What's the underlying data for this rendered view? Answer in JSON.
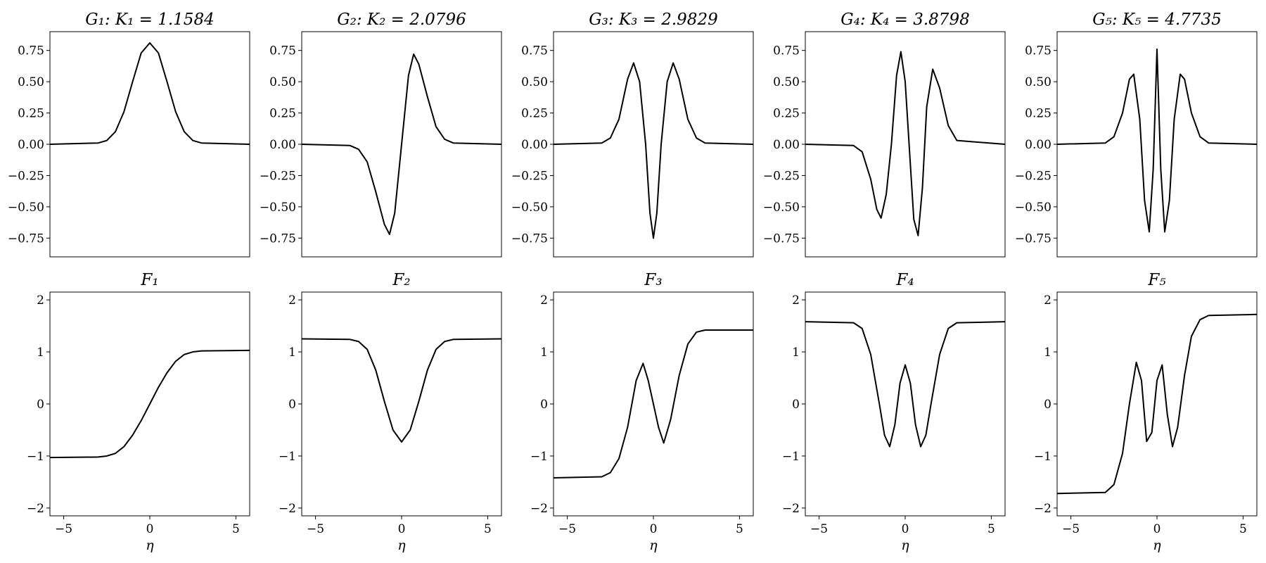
{
  "chart_data": [
    {
      "id": "G1",
      "type": "line",
      "title": "G₁: K₁ = 1.1584",
      "xlabel": "",
      "ylabel": "",
      "xlim": [
        -5.8,
        5.8
      ],
      "ylim": [
        -0.9,
        0.9
      ],
      "yticks": [
        "0.75",
        "0.50",
        "0.25",
        "0.00",
        "−0.25",
        "−0.50",
        "−0.75"
      ],
      "xticks": [],
      "x": [
        -5.8,
        -3.0,
        -2.5,
        -2.0,
        -1.5,
        -1.0,
        -0.5,
        0.0,
        0.5,
        1.0,
        1.5,
        2.0,
        2.5,
        3.0,
        5.8
      ],
      "values": [
        0.0,
        0.01,
        0.03,
        0.1,
        0.26,
        0.5,
        0.73,
        0.81,
        0.73,
        0.5,
        0.26,
        0.1,
        0.03,
        0.01,
        0.0
      ]
    },
    {
      "id": "G2",
      "type": "line",
      "title": "G₂: K₂ = 2.0796",
      "xlabel": "",
      "ylabel": "",
      "xlim": [
        -5.8,
        5.8
      ],
      "ylim": [
        -0.9,
        0.9
      ],
      "yticks": [
        "0.75",
        "0.50",
        "0.25",
        "0.00",
        "−0.25",
        "−0.50",
        "−0.75"
      ],
      "xticks": [],
      "x": [
        -5.8,
        -3.0,
        -2.5,
        -2.0,
        -1.5,
        -1.0,
        -0.7,
        -0.4,
        0.0,
        0.4,
        0.7,
        1.0,
        1.5,
        2.0,
        2.5,
        3.0,
        5.8
      ],
      "values": [
        0.0,
        -0.01,
        -0.04,
        -0.14,
        -0.38,
        -0.64,
        -0.72,
        -0.55,
        0.0,
        0.55,
        0.72,
        0.64,
        0.38,
        0.14,
        0.04,
        0.01,
        0.0
      ]
    },
    {
      "id": "G3",
      "type": "line",
      "title": "G₃: K₃ = 2.9829",
      "xlabel": "",
      "ylabel": "",
      "xlim": [
        -5.8,
        5.8
      ],
      "ylim": [
        -0.9,
        0.9
      ],
      "yticks": [
        "0.75",
        "0.50",
        "0.25",
        "0.00",
        "−0.25",
        "−0.50",
        "−0.75"
      ],
      "xticks": [],
      "x": [
        -5.8,
        -3.0,
        -2.5,
        -2.0,
        -1.5,
        -1.15,
        -0.8,
        -0.45,
        -0.2,
        0.0,
        0.2,
        0.45,
        0.8,
        1.15,
        1.5,
        2.0,
        2.5,
        3.0,
        5.8
      ],
      "values": [
        0.0,
        0.01,
        0.05,
        0.2,
        0.52,
        0.65,
        0.5,
        0.0,
        -0.55,
        -0.75,
        -0.55,
        0.0,
        0.5,
        0.65,
        0.52,
        0.2,
        0.05,
        0.01,
        0.0
      ]
    },
    {
      "id": "G4",
      "type": "line",
      "title": "G₄: K₄ = 3.8798",
      "xlabel": "",
      "ylabel": "",
      "xlim": [
        -5.8,
        5.8
      ],
      "ylim": [
        -0.9,
        0.9
      ],
      "yticks": [
        "0.75",
        "0.50",
        "0.25",
        "0.00",
        "−0.25",
        "−0.50",
        "−0.75"
      ],
      "xticks": [],
      "x": [
        -5.8,
        -3.0,
        -2.5,
        -2.0,
        -1.65,
        -1.4,
        -1.1,
        -0.8,
        -0.5,
        -0.25,
        0.0,
        0.25,
        0.5,
        0.75,
        1.0,
        1.25,
        1.6,
        2.0,
        2.5,
        3.0,
        5.8
      ],
      "values": [
        0.0,
        -0.01,
        -0.06,
        -0.28,
        -0.52,
        -0.59,
        -0.4,
        0.0,
        0.55,
        0.74,
        0.5,
        -0.05,
        -0.6,
        -0.73,
        -0.35,
        0.3,
        0.6,
        0.45,
        0.15,
        0.03,
        0.0
      ]
    },
    {
      "id": "G5",
      "type": "line",
      "title": "G₅: K₅ = 4.7735",
      "xlabel": "",
      "ylabel": "",
      "xlim": [
        -5.8,
        5.8
      ],
      "ylim": [
        -0.9,
        0.9
      ],
      "yticks": [
        "0.75",
        "0.50",
        "0.25",
        "0.00",
        "−0.25",
        "−0.50",
        "−0.75"
      ],
      "xticks": [],
      "x": [
        -5.8,
        -3.0,
        -2.5,
        -2.0,
        -1.6,
        -1.35,
        -1.0,
        -0.72,
        -0.45,
        -0.22,
        0.0,
        0.22,
        0.45,
        0.72,
        1.0,
        1.35,
        1.6,
        2.0,
        2.5,
        3.0,
        5.8
      ],
      "values": [
        0.0,
        0.01,
        0.06,
        0.25,
        0.52,
        0.56,
        0.2,
        -0.45,
        -0.7,
        -0.2,
        0.76,
        -0.2,
        -0.7,
        -0.45,
        0.2,
        0.56,
        0.52,
        0.25,
        0.06,
        0.01,
        0.0
      ]
    },
    {
      "id": "F1",
      "type": "line",
      "title": "F₁",
      "xlabel": "η",
      "ylabel": "",
      "xlim": [
        -5.8,
        5.8
      ],
      "ylim": [
        -2.15,
        2.15
      ],
      "yticks": [
        "2",
        "1",
        "0",
        "−1",
        "−2"
      ],
      "xticks": [
        "−5",
        "0",
        "5"
      ],
      "x": [
        -5.8,
        -3.0,
        -2.5,
        -2.0,
        -1.5,
        -1.0,
        -0.5,
        0.0,
        0.5,
        1.0,
        1.5,
        2.0,
        2.5,
        3.0,
        5.8
      ],
      "values": [
        -1.03,
        -1.02,
        -1.0,
        -0.95,
        -0.82,
        -0.6,
        -0.32,
        0.0,
        0.32,
        0.6,
        0.82,
        0.95,
        1.0,
        1.02,
        1.03
      ]
    },
    {
      "id": "F2",
      "type": "line",
      "title": "F₂",
      "xlabel": "η",
      "ylabel": "",
      "xlim": [
        -5.8,
        5.8
      ],
      "ylim": [
        -2.15,
        2.15
      ],
      "yticks": [
        "2",
        "1",
        "0",
        "−1",
        "−2"
      ],
      "xticks": [
        "−5",
        "0",
        "5"
      ],
      "x": [
        -5.8,
        -3.0,
        -2.5,
        -2.0,
        -1.5,
        -1.0,
        -0.5,
        0.0,
        0.5,
        1.0,
        1.5,
        2.0,
        2.5,
        3.0,
        5.8
      ],
      "values": [
        1.25,
        1.24,
        1.2,
        1.05,
        0.65,
        0.05,
        -0.5,
        -0.73,
        -0.5,
        0.05,
        0.65,
        1.05,
        1.2,
        1.24,
        1.25
      ]
    },
    {
      "id": "F3",
      "type": "line",
      "title": "F₃",
      "xlabel": "η",
      "ylabel": "",
      "xlim": [
        -5.8,
        5.8
      ],
      "ylim": [
        -2.15,
        2.15
      ],
      "yticks": [
        "2",
        "1",
        "0",
        "−1",
        "−2"
      ],
      "xticks": [
        "−5",
        "0",
        "5"
      ],
      "x": [
        -5.8,
        -3.0,
        -2.5,
        -2.0,
        -1.5,
        -1.0,
        -0.6,
        -0.3,
        0.0,
        0.3,
        0.6,
        1.0,
        1.5,
        2.0,
        2.5,
        3.0,
        5.8
      ],
      "values": [
        -1.42,
        -1.4,
        -1.32,
        -1.05,
        -0.45,
        0.45,
        0.78,
        0.45,
        0.0,
        -0.45,
        -0.75,
        -0.3,
        0.55,
        1.15,
        1.38,
        1.42,
        1.42
      ]
    },
    {
      "id": "F4",
      "type": "line",
      "title": "F₄",
      "xlabel": "η",
      "ylabel": "",
      "xlim": [
        -5.8,
        5.8
      ],
      "ylim": [
        -2.15,
        2.15
      ],
      "yticks": [
        "2",
        "1",
        "0",
        "−1",
        "−2"
      ],
      "xticks": [
        "−5",
        "0",
        "5"
      ],
      "x": [
        -5.8,
        -3.0,
        -2.5,
        -2.0,
        -1.5,
        -1.2,
        -0.9,
        -0.6,
        -0.3,
        0.0,
        0.3,
        0.6,
        0.9,
        1.2,
        1.5,
        2.0,
        2.5,
        3.0,
        5.8
      ],
      "values": [
        1.58,
        1.56,
        1.45,
        0.95,
        0.0,
        -0.6,
        -0.82,
        -0.4,
        0.4,
        0.75,
        0.4,
        -0.4,
        -0.82,
        -0.6,
        0.0,
        0.95,
        1.45,
        1.56,
        1.58
      ]
    },
    {
      "id": "F5",
      "type": "line",
      "title": "F₅",
      "xlabel": "η",
      "ylabel": "",
      "xlim": [
        -5.8,
        5.8
      ],
      "ylim": [
        -2.15,
        2.15
      ],
      "yticks": [
        "2",
        "1",
        "0",
        "−1",
        "−2"
      ],
      "xticks": [
        "−5",
        "0",
        "5"
      ],
      "x": [
        -5.8,
        -3.0,
        -2.5,
        -2.0,
        -1.6,
        -1.2,
        -0.9,
        -0.6,
        -0.3,
        0.0,
        0.3,
        0.6,
        0.9,
        1.2,
        1.6,
        2.0,
        2.5,
        3.0,
        5.8
      ],
      "values": [
        -1.72,
        -1.7,
        -1.55,
        -0.95,
        0.0,
        0.8,
        0.45,
        -0.72,
        -0.55,
        0.45,
        0.75,
        -0.2,
        -0.82,
        -0.45,
        0.55,
        1.3,
        1.62,
        1.7,
        1.72
      ]
    }
  ]
}
